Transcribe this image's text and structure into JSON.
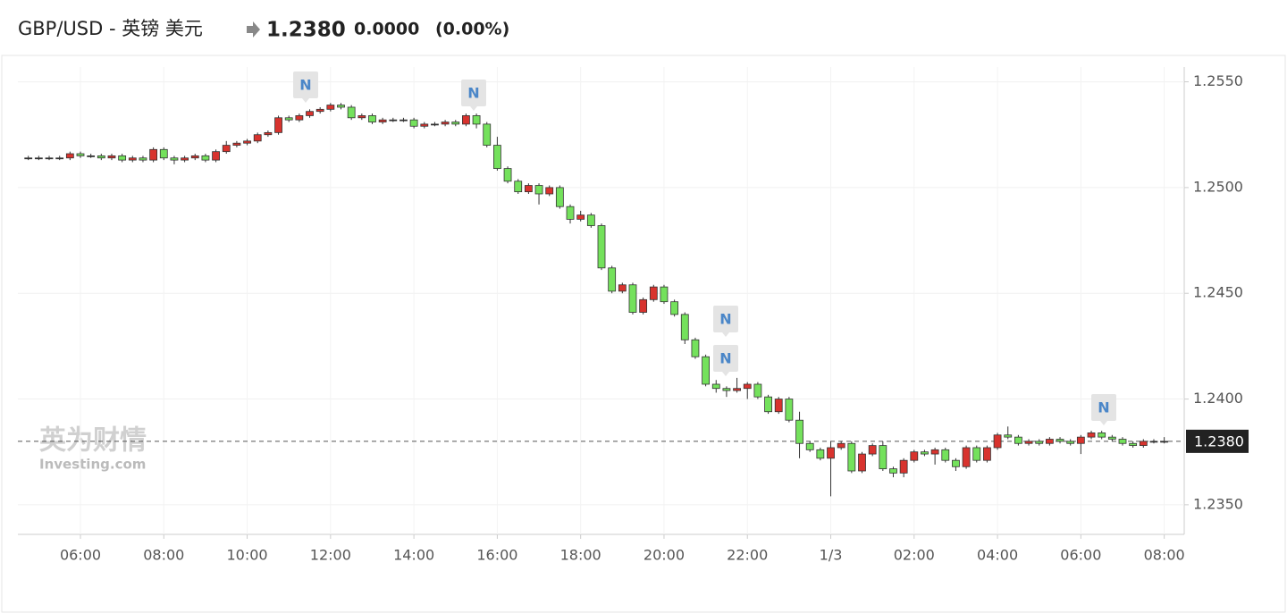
{
  "chart_data": {
    "type": "candlestick",
    "title": "GBP/USD - 英镑 美元",
    "header_price": "1.2380",
    "header_change": "0.0000",
    "header_change_percent": "(0.00%)",
    "watermark": [
      "英为财情",
      "Investing.com"
    ],
    "annotations": [
      "N",
      "N",
      "N",
      "N",
      "N"
    ],
    "up_color": "#d8332e",
    "down_color": "#74e15c",
    "grid": true,
    "ylim": [
      1.2336,
      1.2557
    ],
    "yticks": [
      {
        "value": 1.235,
        "label": "1.2350"
      },
      {
        "value": 1.24,
        "label": "1.2400"
      },
      {
        "value": 1.245,
        "label": "1.2450"
      },
      {
        "value": 1.25,
        "label": "1.2500"
      },
      {
        "value": 1.255,
        "label": "1.2550"
      }
    ],
    "last_price": {
      "value": 1.238,
      "label": "1.2380"
    },
    "categories": [
      null,
      null,
      null,
      null,
      null,
      "06:00",
      null,
      null,
      null,
      null,
      null,
      null,
      null,
      "08:00",
      null,
      null,
      null,
      null,
      null,
      null,
      null,
      "10:00",
      null,
      null,
      null,
      null,
      null,
      null,
      null,
      "12:00",
      null,
      null,
      null,
      null,
      null,
      null,
      null,
      "14:00",
      null,
      null,
      null,
      null,
      null,
      null,
      null,
      "16:00",
      null,
      null,
      null,
      null,
      null,
      null,
      null,
      "18:00",
      null,
      null,
      null,
      null,
      null,
      null,
      null,
      "20:00",
      null,
      null,
      null,
      null,
      null,
      null,
      null,
      "22:00",
      null,
      null,
      null,
      null,
      null,
      null,
      null,
      "1/3",
      null,
      null,
      null,
      null,
      null,
      null,
      null,
      "02:00",
      null,
      null,
      null,
      null,
      null,
      null,
      null,
      "04:00",
      null,
      null,
      null,
      null,
      null,
      null,
      null,
      "06:00",
      null,
      null,
      null,
      null,
      null,
      null,
      null,
      "08:00"
    ],
    "open": [
      1.2514,
      1.2514,
      1.2514,
      1.2514,
      1.2514,
      1.2516,
      1.2515,
      1.2515,
      1.2514,
      1.2515,
      1.2513,
      1.2514,
      1.2513,
      1.2518,
      1.2514,
      1.2513,
      1.2514,
      1.2515,
      1.2513,
      1.2517,
      1.252,
      1.2521,
      1.2522,
      1.2525,
      1.2526,
      1.2533,
      1.2532,
      1.2534,
      1.2536,
      1.2537,
      1.2539,
      1.2538,
      1.2533,
      1.2534,
      1.2531,
      1.2532,
      1.2532,
      1.2532,
      1.2529,
      1.253,
      1.253,
      1.2531,
      1.253,
      1.2534,
      1.253,
      1.252,
      1.2509,
      1.2503,
      1.2498,
      1.2501,
      1.2497,
      1.25,
      1.2491,
      1.2485,
      1.2487,
      1.2482,
      1.2462,
      1.2451,
      1.2454,
      1.2441,
      1.2447,
      1.2453,
      1.2446,
      1.244,
      1.2428,
      1.242,
      1.2407,
      1.2405,
      1.2404,
      1.2405,
      1.2407,
      1.2401,
      1.2394,
      1.24,
      1.239,
      1.2379,
      1.2376,
      1.2372,
      1.2377,
      1.2379,
      1.2366,
      1.2374,
      1.2378,
      1.2367,
      1.2365,
      1.2371,
      1.2375,
      1.2374,
      1.2376,
      1.2371,
      1.2368,
      1.2377,
      1.2371,
      1.2377,
      1.2383,
      1.2382,
      1.2379,
      1.238,
      1.2379,
      1.2381,
      1.238,
      1.2379,
      1.2382,
      1.2384,
      1.2382,
      1.2381,
      1.2379,
      1.2378,
      1.238,
      1.238
    ],
    "high": [
      1.2515,
      1.2515,
      1.2515,
      1.2515,
      1.2517,
      1.2517,
      1.2516,
      1.2516,
      1.2516,
      1.2516,
      1.2515,
      1.2515,
      1.2519,
      1.2519,
      1.2515,
      1.2515,
      1.2516,
      1.2516,
      1.2518,
      1.2522,
      1.2522,
      1.2523,
      1.2526,
      1.2527,
      1.2534,
      1.2534,
      1.2535,
      1.2537,
      1.2538,
      1.254,
      1.254,
      1.2539,
      1.2535,
      1.2535,
      1.2533,
      1.2533,
      1.2533,
      1.2533,
      1.2531,
      1.2531,
      1.2532,
      1.2532,
      1.2535,
      1.2535,
      1.2531,
      1.2524,
      1.251,
      1.2504,
      1.2502,
      1.2502,
      1.2501,
      1.2501,
      1.2492,
      1.2489,
      1.2488,
      1.2483,
      1.2463,
      1.2455,
      1.2455,
      1.2448,
      1.2454,
      1.2454,
      1.2447,
      1.2441,
      1.2429,
      1.2421,
      1.2409,
      1.2406,
      1.241,
      1.2408,
      1.2408,
      1.2402,
      1.2401,
      1.2401,
      1.2394,
      1.238,
      1.2377,
      1.238,
      1.238,
      1.238,
      1.2375,
      1.2379,
      1.238,
      1.2368,
      1.2372,
      1.2376,
      1.2376,
      1.2377,
      1.2377,
      1.2372,
      1.2378,
      1.2378,
      1.2378,
      1.2384,
      1.2387,
      1.2383,
      1.2381,
      1.2381,
      1.2382,
      1.2382,
      1.2381,
      1.2383,
      1.2385,
      1.2385,
      1.2383,
      1.2382,
      1.238,
      1.2381,
      1.2381,
      1.2382
    ],
    "low": [
      1.2513,
      1.2513,
      1.2513,
      1.2513,
      1.2513,
      1.2514,
      1.2514,
      1.2513,
      1.2513,
      1.2512,
      1.2512,
      1.2512,
      1.2512,
      1.2513,
      1.2511,
      1.2512,
      1.2513,
      1.2512,
      1.2512,
      1.2516,
      1.2519,
      1.252,
      1.2521,
      1.2524,
      1.2525,
      1.2531,
      1.2531,
      1.2533,
      1.2535,
      1.2536,
      1.2537,
      1.2532,
      1.2532,
      1.253,
      1.253,
      1.2531,
      1.2531,
      1.2528,
      1.2528,
      1.2529,
      1.2529,
      1.2529,
      1.2529,
      1.2528,
      1.2519,
      1.2508,
      1.2502,
      1.2497,
      1.2497,
      1.2492,
      1.2496,
      1.249,
      1.2483,
      1.2484,
      1.2481,
      1.2461,
      1.245,
      1.245,
      1.244,
      1.244,
      1.2446,
      1.2445,
      1.2439,
      1.2426,
      1.2419,
      1.2406,
      1.2403,
      1.2401,
      1.2403,
      1.24,
      1.24,
      1.2393,
      1.2393,
      1.2389,
      1.2372,
      1.2375,
      1.2371,
      1.2354,
      1.2376,
      1.2365,
      1.2365,
      1.2373,
      1.2366,
      1.2363,
      1.2363,
      1.237,
      1.2373,
      1.2369,
      1.237,
      1.2366,
      1.2367,
      1.237,
      1.237,
      1.2376,
      1.2381,
      1.2378,
      1.2378,
      1.2378,
      1.2378,
      1.2379,
      1.2378,
      1.2374,
      1.2381,
      1.2381,
      1.238,
      1.2378,
      1.2377,
      1.2377,
      1.2379,
      1.2379
    ],
    "close": [
      1.2514,
      1.2514,
      1.2514,
      1.2514,
      1.2516,
      1.2515,
      1.2515,
      1.2514,
      1.2515,
      1.2513,
      1.2514,
      1.2513,
      1.2518,
      1.2514,
      1.2513,
      1.2514,
      1.2515,
      1.2513,
      1.2517,
      1.252,
      1.2521,
      1.2522,
      1.2525,
      1.2526,
      1.2533,
      1.2532,
      1.2534,
      1.2536,
      1.2537,
      1.2539,
      1.2538,
      1.2533,
      1.2534,
      1.2531,
      1.2532,
      1.2532,
      1.2532,
      1.2529,
      1.253,
      1.253,
      1.2531,
      1.253,
      1.2534,
      1.253,
      1.252,
      1.2509,
      1.2503,
      1.2498,
      1.2501,
      1.2497,
      1.25,
      1.2491,
      1.2485,
      1.2487,
      1.2482,
      1.2462,
      1.2451,
      1.2454,
      1.2441,
      1.2447,
      1.2453,
      1.2446,
      1.244,
      1.2428,
      1.242,
      1.2407,
      1.2405,
      1.2404,
      1.2405,
      1.2407,
      1.2401,
      1.2394,
      1.24,
      1.239,
      1.2379,
      1.2376,
      1.2372,
      1.2377,
      1.2379,
      1.2366,
      1.2374,
      1.2378,
      1.2367,
      1.2365,
      1.2371,
      1.2375,
      1.2374,
      1.2376,
      1.2371,
      1.2368,
      1.2377,
      1.2371,
      1.2377,
      1.2383,
      1.2382,
      1.2379,
      1.238,
      1.2379,
      1.2381,
      1.238,
      1.2379,
      1.2382,
      1.2384,
      1.2382,
      1.2381,
      1.2379,
      1.2378,
      1.238,
      1.238,
      1.238
    ]
  }
}
